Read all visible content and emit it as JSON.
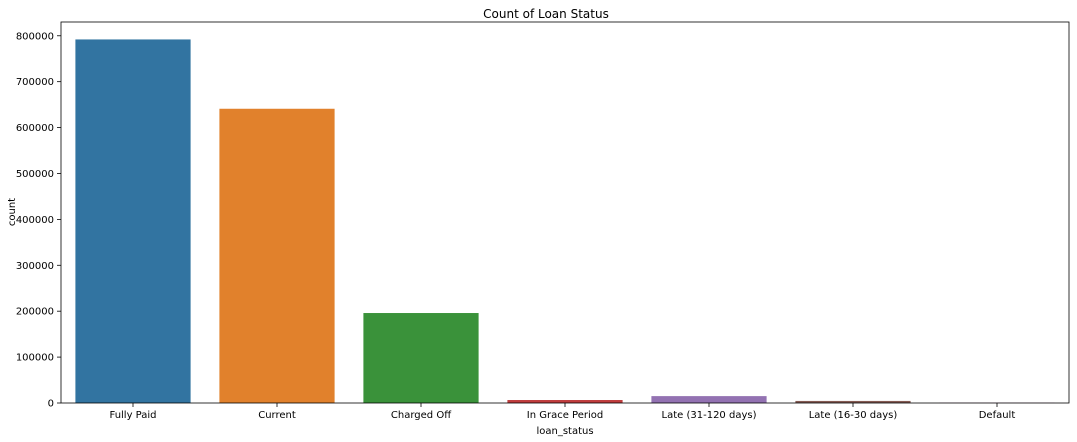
{
  "chart_data": {
    "type": "bar",
    "title": "Count of Loan Status",
    "xlabel": "loan_status",
    "ylabel": "count",
    "categories": [
      "Fully Paid",
      "Current",
      "Charged Off",
      "In Grace Period",
      "Late (31-120 days)",
      "Late (16-30 days)",
      "Default"
    ],
    "values": [
      792000,
      641000,
      196000,
      6500,
      15000,
      4500,
      600
    ],
    "colors": [
      "#3274a1",
      "#e1812c",
      "#3a923a",
      "#c03d3e",
      "#9372b2",
      "#845b53",
      "#d684bd"
    ],
    "ylim": [
      0,
      830000
    ],
    "yticks": [
      0,
      100000,
      200000,
      300000,
      400000,
      500000,
      600000,
      700000,
      800000
    ],
    "ytick_labels": [
      "0",
      "100000",
      "200000",
      "300000",
      "400000",
      "500000",
      "600000",
      "700000",
      "800000"
    ],
    "grid": false,
    "legend": "none"
  }
}
